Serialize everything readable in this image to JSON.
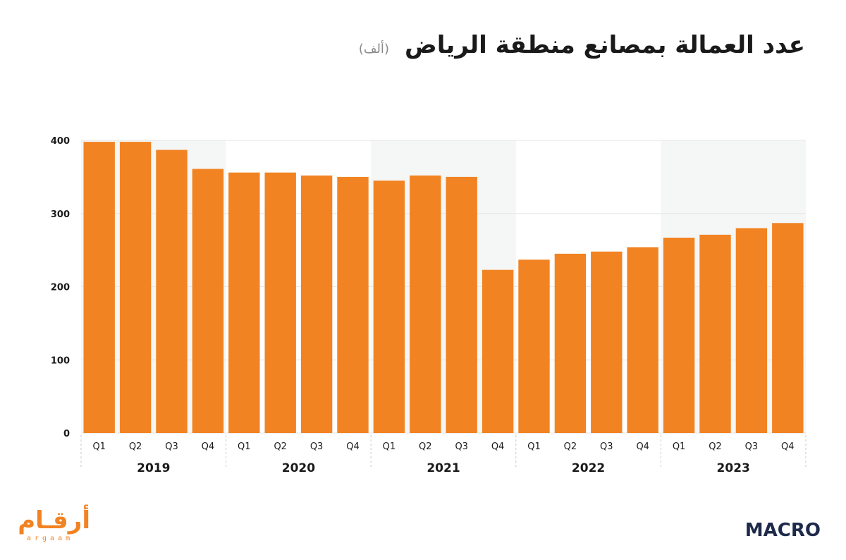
{
  "title": "عدد العمالة بمصانع منطقة الرياض",
  "unit": "(ألف)",
  "logos": {
    "left_main": "أرقـام",
    "left_sub": "argaam",
    "right_brand": "MACRO"
  },
  "colors": {
    "bar": "#f28322",
    "band": "#f5f6f6",
    "grid": "#e6e6e6",
    "axis_text": "#1a1a1a"
  },
  "chart_data": {
    "type": "bar",
    "title": "عدد العمالة بمصانع منطقة الرياض",
    "xlabel": "",
    "ylabel": "",
    "ylim": [
      0,
      400
    ],
    "yticks": [
      0,
      100,
      200,
      300,
      400
    ],
    "grid": true,
    "legend": "none",
    "groups": [
      "2019",
      "2020",
      "2021",
      "2022",
      "2023"
    ],
    "categories": [
      "Q1",
      "Q2",
      "Q3",
      "Q4",
      "Q1",
      "Q2",
      "Q3",
      "Q4",
      "Q1",
      "Q2",
      "Q3",
      "Q4",
      "Q1",
      "Q2",
      "Q3",
      "Q4",
      "Q1",
      "Q2",
      "Q3",
      "Q4"
    ],
    "values": [
      398,
      398,
      387,
      361,
      356,
      356,
      352,
      350,
      345,
      352,
      350,
      223,
      237,
      245,
      248,
      254,
      267,
      271,
      280,
      287
    ]
  }
}
